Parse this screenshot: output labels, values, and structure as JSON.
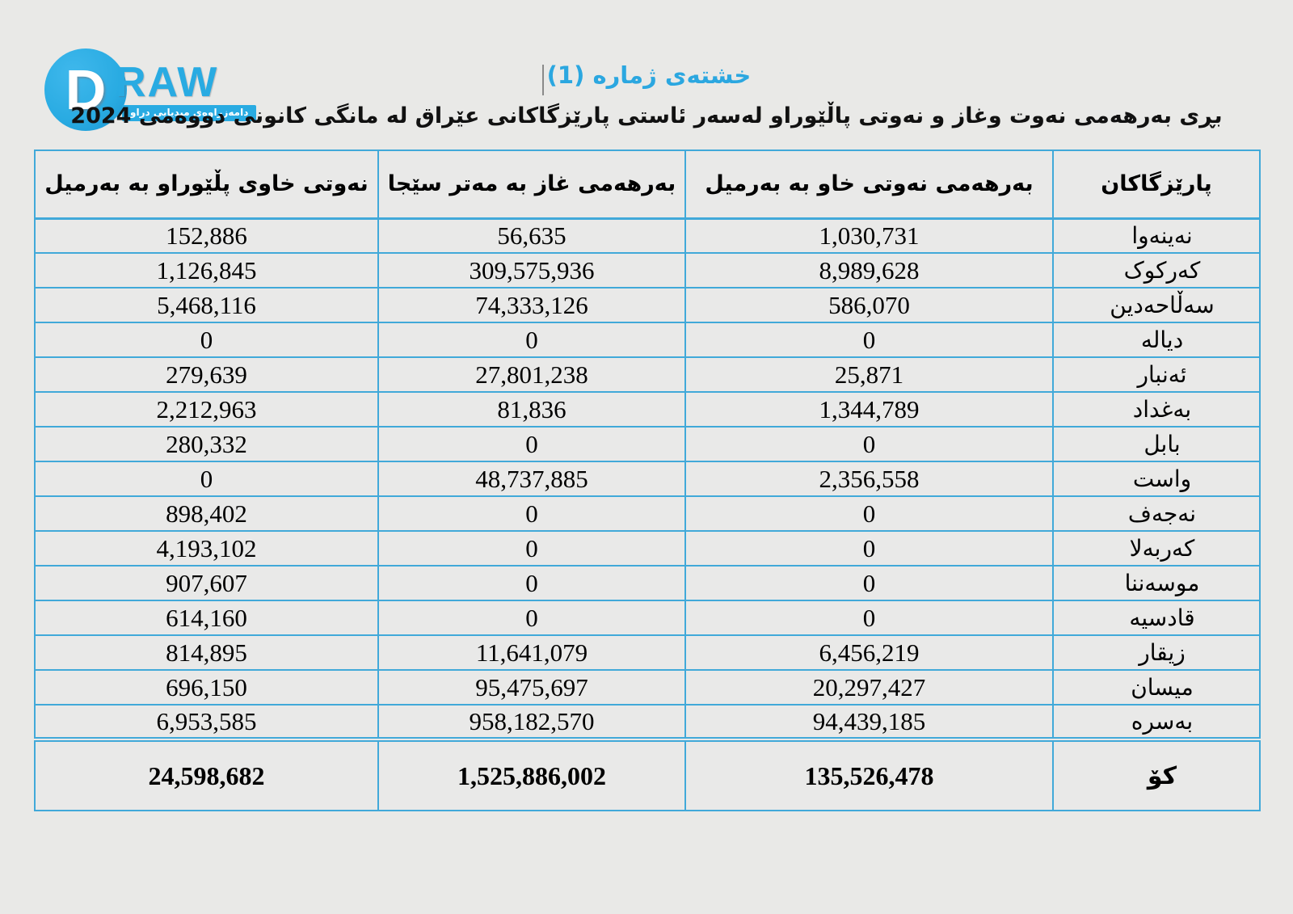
{
  "logo": {
    "letter": "D",
    "wordmark": "RAW",
    "tagline": "دامەزراوەی میدیایی دراو"
  },
  "title": "خشتەی ژماره (1)",
  "subtitle": "بڕی بەرهەمی نەوت وغاز و نەوتی پاڵێوراو لەسەر ئاستی پارێزگاکانی عێراق لە مانگی کانونی دووەمی 2024",
  "colors": {
    "accent_blue": "#29abe2",
    "border_blue": "#41a9d9",
    "background": "#e9e9e7"
  },
  "chart_data": {
    "type": "table",
    "title": "خشتەی ژماره (1)",
    "headers": {
      "province": "پارێزگاکان",
      "crude": "بەرهەمی نەوتی خاو بە بەرمیل",
      "gas": "بەرهەمی غاز بە مەتر سێجا",
      "refined": "نەوتی خاوی پڵێوراو بە بەرمیل"
    },
    "rows": [
      {
        "province": "نەینەوا",
        "crude": "1,030,731",
        "gas": "56,635",
        "refined": "152,886"
      },
      {
        "province": "کەرکوک",
        "crude": "8,989,628",
        "gas": "309,575,936",
        "refined": "1,126,845"
      },
      {
        "province": "سەڵاحەدین",
        "crude": "586,070",
        "gas": "74,333,126",
        "refined": "5,468,116"
      },
      {
        "province": "دیالە",
        "crude": "0",
        "gas": "0",
        "refined": "0"
      },
      {
        "province": "ئەنبار",
        "crude": "25,871",
        "gas": "27,801,238",
        "refined": "279,639"
      },
      {
        "province": "بەغداد",
        "crude": "1,344,789",
        "gas": "81,836",
        "refined": "2,212,963"
      },
      {
        "province": "بابل",
        "crude": "0",
        "gas": "0",
        "refined": "280,332"
      },
      {
        "province": "واست",
        "crude": "2,356,558",
        "gas": "48,737,885",
        "refined": "0"
      },
      {
        "province": "نەجەف",
        "crude": "0",
        "gas": "0",
        "refined": "898,402"
      },
      {
        "province": "کەربەلا",
        "crude": "0",
        "gas": "0",
        "refined": "4,193,102"
      },
      {
        "province": "موسەننا",
        "crude": "0",
        "gas": "0",
        "refined": "907,607"
      },
      {
        "province": "قادسیە",
        "crude": "0",
        "gas": "0",
        "refined": "614,160"
      },
      {
        "province": "زیقار",
        "crude": "6,456,219",
        "gas": "11,641,079",
        "refined": "814,895"
      },
      {
        "province": "میسان",
        "crude": "20,297,427",
        "gas": "95,475,697",
        "refined": "696,150"
      },
      {
        "province": "بەسرە",
        "crude": "94,439,185",
        "gas": "958,182,570",
        "refined": "6,953,585"
      }
    ],
    "total": {
      "province": "کۆ",
      "crude": "135,526,478",
      "gas": "1,525,886,002",
      "refined": "24,598,682"
    }
  }
}
